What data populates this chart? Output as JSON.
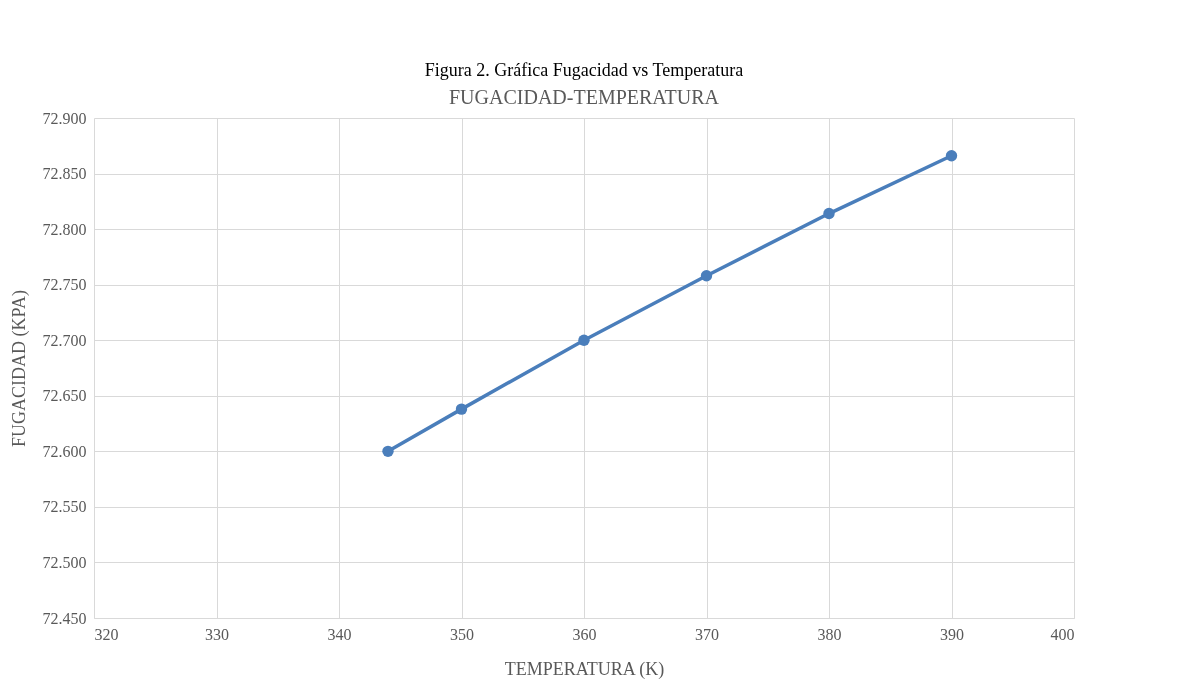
{
  "chart_data": {
    "type": "line",
    "title": "FUGACIDAD-TEMPERATURA",
    "xlabel": "TEMPERATURA (K)",
    "ylabel": "FUGACIDAD (KPA)",
    "annotations": [
      "Figura 2. Gráfica Fugacidad vs Temperatura"
    ],
    "x": [
      344,
      350,
      360,
      370,
      380,
      390
    ],
    "series": [
      {
        "color": "#4a7ebb",
        "values": [
          72.6,
          72.638,
          72.7,
          72.758,
          72.814,
          72.866
        ]
      }
    ],
    "xlim": [
      320,
      400
    ],
    "xticks": [
      320,
      330,
      340,
      350,
      360,
      370,
      380,
      390,
      400
    ],
    "ylim": [
      72.45,
      72.9
    ],
    "yticks": [
      {
        "value": 72.45,
        "label": "72.450"
      },
      {
        "value": 72.5,
        "label": "72.500"
      },
      {
        "value": 72.55,
        "label": "72.550"
      },
      {
        "value": 72.6,
        "label": "72.600"
      },
      {
        "value": 72.65,
        "label": "72.650"
      },
      {
        "value": 72.7,
        "label": "72.700"
      },
      {
        "value": 72.75,
        "label": "72.750"
      },
      {
        "value": 72.8,
        "label": "72.800"
      },
      {
        "value": 72.85,
        "label": "72.850"
      },
      {
        "value": 72.9,
        "label": "72.900"
      }
    ],
    "grid": true,
    "marker": "circle",
    "line_style": "solid",
    "legend": false
  }
}
